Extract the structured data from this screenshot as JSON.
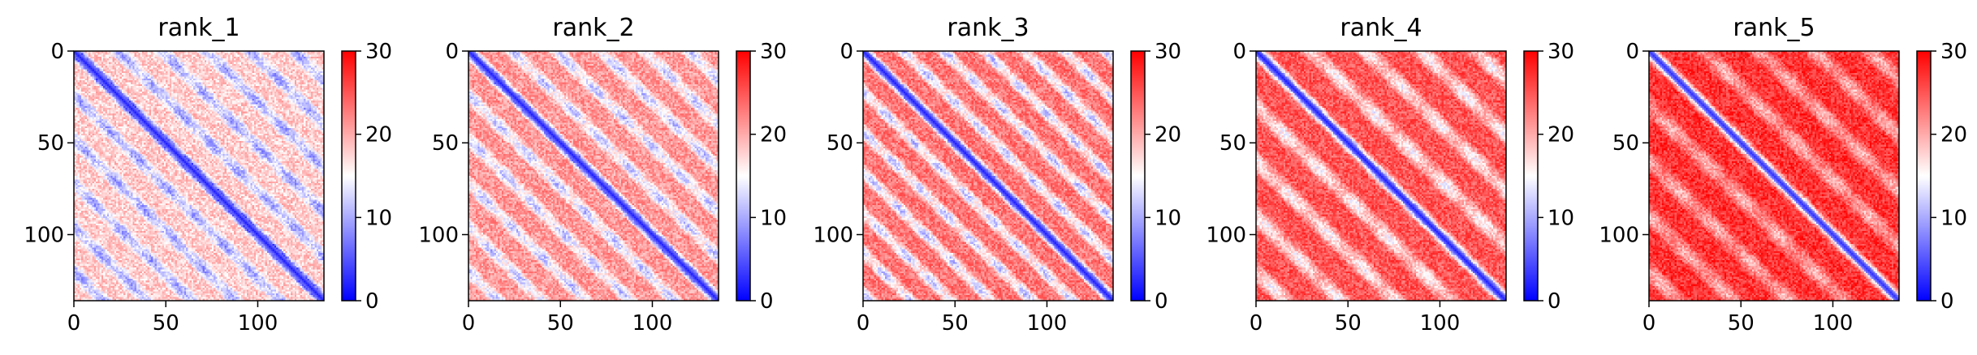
{
  "chart_data": [
    {
      "type": "heatmap",
      "title": "rank_1",
      "xticks": [
        0,
        50,
        100
      ],
      "yticks": [
        0,
        50,
        100
      ],
      "xlim": [
        0,
        136
      ],
      "ylim": [
        136,
        0
      ],
      "colorbar": {
        "ticks": [
          0,
          10,
          20,
          30
        ],
        "range": [
          0,
          30
        ],
        "colormap": "bwr"
      },
      "pattern": {
        "diagonal_value": 2,
        "background_value": 18,
        "stripe_period": 24,
        "stripe_depth": 9
      }
    },
    {
      "type": "heatmap",
      "title": "rank_2",
      "xticks": [
        0,
        50,
        100
      ],
      "yticks": [
        0,
        50,
        100
      ],
      "xlim": [
        0,
        136
      ],
      "ylim": [
        136,
        0
      ],
      "colorbar": {
        "ticks": [
          0,
          10,
          20,
          30
        ],
        "range": [
          0,
          30
        ],
        "colormap": "bwr"
      },
      "pattern": {
        "diagonal_value": 2,
        "background_value": 21,
        "stripe_period": 24,
        "stripe_depth": 10
      }
    },
    {
      "type": "heatmap",
      "title": "rank_3",
      "xticks": [
        0,
        50,
        100
      ],
      "yticks": [
        0,
        50,
        100
      ],
      "xlim": [
        0,
        136
      ],
      "ylim": [
        136,
        0
      ],
      "colorbar": {
        "ticks": [
          0,
          10,
          20,
          30
        ],
        "range": [
          0,
          30
        ],
        "colormap": "bwr"
      },
      "pattern": {
        "diagonal_value": 2,
        "background_value": 23,
        "stripe_period": 22,
        "stripe_depth": 12
      }
    },
    {
      "type": "heatmap",
      "title": "rank_4",
      "xticks": [
        0,
        50,
        100
      ],
      "yticks": [
        0,
        50,
        100
      ],
      "xlim": [
        0,
        136
      ],
      "ylim": [
        136,
        0
      ],
      "colorbar": {
        "ticks": [
          0,
          10,
          20,
          30
        ],
        "range": [
          0,
          30
        ],
        "colormap": "bwr"
      },
      "pattern": {
        "diagonal_value": 2,
        "background_value": 25,
        "stripe_period": 30,
        "stripe_depth": 10
      }
    },
    {
      "type": "heatmap",
      "title": "rank_5",
      "xticks": [
        0,
        50,
        100
      ],
      "yticks": [
        0,
        50,
        100
      ],
      "xlim": [
        0,
        136
      ],
      "ylim": [
        136,
        0
      ],
      "colorbar": {
        "ticks": [
          0,
          10,
          20,
          30
        ],
        "range": [
          0,
          30
        ],
        "colormap": "bwr"
      },
      "pattern": {
        "diagonal_value": 3,
        "background_value": 27,
        "stripe_period": 30,
        "stripe_depth": 8
      }
    }
  ]
}
